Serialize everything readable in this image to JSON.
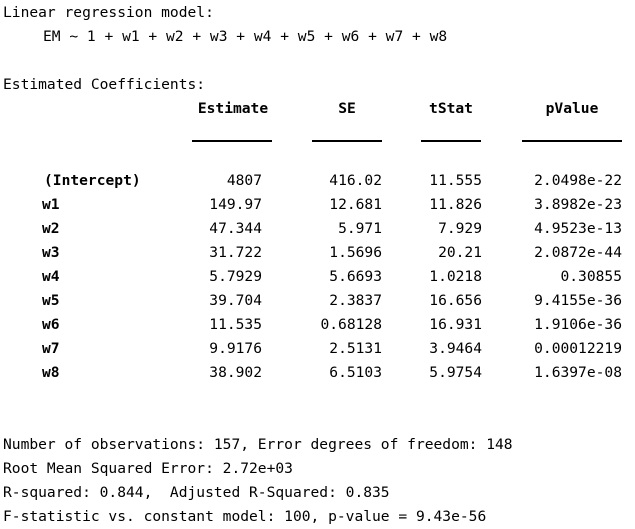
{
  "model": {
    "title": "Linear regression model:",
    "formula": "EM ~ 1 + w1 + w2 + w3 + w4 + w5 + w6 + w7 + w8"
  },
  "coefficients": {
    "title": "Estimated Coefficients:",
    "columns": [
      "Estimate",
      "SE",
      "tStat",
      "pValue"
    ],
    "rows": [
      {
        "name": "(Intercept)",
        "estimate": "4807",
        "se": "416.02",
        "tstat": "11.555",
        "pvalue": "2.0498e-22"
      },
      {
        "name": "w1",
        "estimate": "149.97",
        "se": "12.681",
        "tstat": "11.826",
        "pvalue": "3.8982e-23"
      },
      {
        "name": "w2",
        "estimate": "47.344",
        "se": "5.971",
        "tstat": "7.929",
        "pvalue": "4.9523e-13"
      },
      {
        "name": "w3",
        "estimate": "31.722",
        "se": "1.5696",
        "tstat": "20.21",
        "pvalue": "2.0872e-44"
      },
      {
        "name": "w4",
        "estimate": "5.7929",
        "se": "5.6693",
        "tstat": "1.0218",
        "pvalue": "0.30855"
      },
      {
        "name": "w5",
        "estimate": "39.704",
        "se": "2.3837",
        "tstat": "16.656",
        "pvalue": "9.4155e-36"
      },
      {
        "name": "w6",
        "estimate": "11.535",
        "se": "0.68128",
        "tstat": "16.931",
        "pvalue": "1.9106e-36"
      },
      {
        "name": "w7",
        "estimate": "9.9176",
        "se": "2.5131",
        "tstat": "3.9464",
        "pvalue": "0.00012219"
      },
      {
        "name": "w8",
        "estimate": "38.902",
        "se": "6.5103",
        "tstat": "5.9754",
        "pvalue": "1.6397e-08"
      }
    ]
  },
  "stats": {
    "observations": "Number of observations: 157, Error degrees of freedom: 148",
    "rmse": "Root Mean Squared Error: 2.72e+03",
    "rsquared": "R-squared: 0.844,  Adjusted R-Squared: 0.835",
    "fstat": "F-statistic vs. constant model: 100, p-value = 9.43e-56"
  }
}
